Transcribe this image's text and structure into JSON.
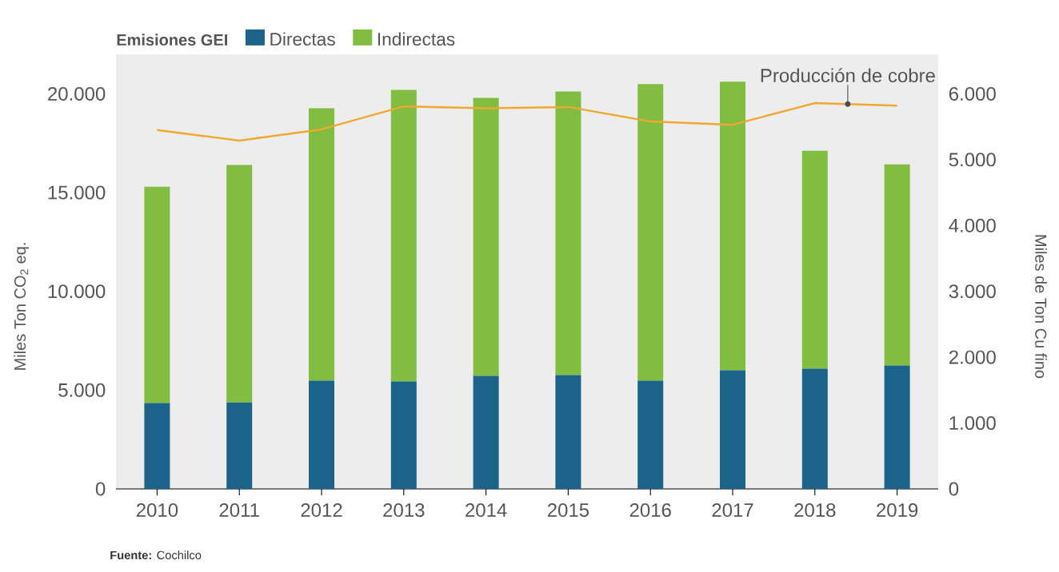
{
  "chart_data": {
    "type": "bar",
    "stacked": true,
    "legend_title": "Emisiones GEI",
    "legend": "top left",
    "ylabel": "Miles Ton CO$_{2}$ eq.",
    "y2label": "Miles de Ton Cu fino",
    "categories": [
      "2010",
      "2011",
      "2012",
      "2013",
      "2014",
      "2015",
      "2016",
      "2017",
      "2018",
      "2019"
    ],
    "series": [
      {
        "name": "Directas",
        "color": "#1b6389",
        "values": [
          4350,
          4380,
          5480,
          5440,
          5720,
          5760,
          5480,
          6000,
          6090,
          6250
        ]
      },
      {
        "name": "Indirectas",
        "color": "#80bd41",
        "values": [
          10950,
          12020,
          13790,
          14760,
          14080,
          14360,
          15010,
          14610,
          11030,
          10180
        ]
      },
      {
        "name": "Producción de cobre",
        "type": "line",
        "axis": "y2",
        "color": "#f0a830",
        "values": [
          5450,
          5290,
          5460,
          5810,
          5780,
          5800,
          5580,
          5530,
          5860,
          5820
        ]
      }
    ],
    "ylim": [
      0,
      22000
    ],
    "yticks": [
      0,
      {
        "value": 5000,
        "label": "5.000"
      },
      {
        "value": 10000,
        "label": "10.000"
      },
      {
        "value": 15000,
        "label": "15.000"
      },
      {
        "value": 20000,
        "label": "20.000"
      }
    ],
    "y2lim": [
      0,
      6600
    ],
    "y2ticks": [
      0,
      {
        "value": 1000,
        "label": "1.000"
      },
      {
        "value": 2000,
        "label": "2.000"
      },
      {
        "value": 3000,
        "label": "3.000"
      },
      {
        "value": 4000,
        "label": "4.000"
      },
      {
        "value": 5000,
        "label": "5.000"
      },
      {
        "value": 6000,
        "label": "6.000"
      }
    ],
    "grid": false,
    "annotations": [
      "**Fuente:** Cochilco"
    ]
  }
}
